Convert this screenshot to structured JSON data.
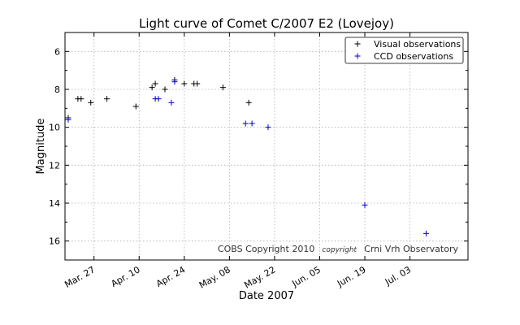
{
  "chart_data": {
    "type": "scatter",
    "title": "Light curve of Comet C/2007 E2 (Lovejoy)",
    "xlabel": "Date 2007",
    "ylabel": "Magnitude",
    "x_type": "date",
    "xlim": [
      "2007-03-18",
      "2007-07-21"
    ],
    "ylim": [
      17,
      5
    ],
    "y_inverted": true,
    "grid": true,
    "legend_position": "top-right",
    "x_ticks": [
      {
        "date": "2007-03-27",
        "label": "Mar. 27"
      },
      {
        "date": "2007-04-10",
        "label": "Apr. 10"
      },
      {
        "date": "2007-04-24",
        "label": "Apr. 24"
      },
      {
        "date": "2007-05-08",
        "label": "May. 08"
      },
      {
        "date": "2007-05-22",
        "label": "May. 22"
      },
      {
        "date": "2007-06-05",
        "label": "Jun. 05"
      },
      {
        "date": "2007-06-19",
        "label": "Jun. 19"
      },
      {
        "date": "2007-07-03",
        "label": "Jul. 03"
      }
    ],
    "y_ticks": [
      6,
      8,
      10,
      12,
      14,
      16
    ],
    "series": [
      {
        "name": "Visual observations",
        "color": "#000000",
        "marker": "plus",
        "points": [
          {
            "x": "2007-03-19",
            "y": 9.5
          },
          {
            "x": "2007-03-22",
            "y": 8.5
          },
          {
            "x": "2007-03-23",
            "y": 8.5
          },
          {
            "x": "2007-03-26",
            "y": 8.7
          },
          {
            "x": "2007-03-31",
            "y": 8.5
          },
          {
            "x": "2007-04-09",
            "y": 8.9
          },
          {
            "x": "2007-04-14",
            "y": 7.9
          },
          {
            "x": "2007-04-15",
            "y": 7.7
          },
          {
            "x": "2007-04-18",
            "y": 8.0
          },
          {
            "x": "2007-04-21",
            "y": 7.5
          },
          {
            "x": "2007-04-24",
            "y": 7.7
          },
          {
            "x": "2007-04-27",
            "y": 7.7
          },
          {
            "x": "2007-04-28",
            "y": 7.7
          },
          {
            "x": "2007-05-06",
            "y": 7.9
          },
          {
            "x": "2007-05-14",
            "y": 8.7
          }
        ]
      },
      {
        "name": "CCD observations",
        "color": "#0000cc",
        "marker": "plus",
        "points": [
          {
            "x": "2007-03-19",
            "y": 9.6
          },
          {
            "x": "2007-04-15",
            "y": 8.5
          },
          {
            "x": "2007-04-16",
            "y": 8.5
          },
          {
            "x": "2007-04-20",
            "y": 8.7
          },
          {
            "x": "2007-04-21",
            "y": 7.6
          },
          {
            "x": "2007-05-13",
            "y": 9.8
          },
          {
            "x": "2007-05-15",
            "y": 9.8
          },
          {
            "x": "2007-05-20",
            "y": 10.0
          },
          {
            "x": "2007-06-19",
            "y": 14.1
          },
          {
            "x": "2007-07-08",
            "y": 15.6
          }
        ]
      }
    ]
  },
  "copyright": {
    "prefix": "COBS Copyright 2010",
    "script_word": "copyright",
    "suffix": "Crni Vrh Observatory"
  }
}
